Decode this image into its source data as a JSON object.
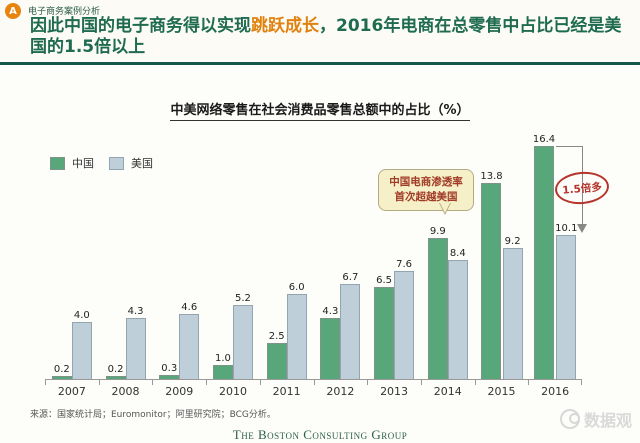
{
  "header": {
    "badge": "A",
    "eyebrow": "电子商务案例分析",
    "title_pre": "因此中国的电子商务得以实现",
    "title_highlight": "跳跃成长",
    "title_post": "，2016年电商在总零售中占比已经是美国的1.5倍以上"
  },
  "chart_data": {
    "type": "bar",
    "title": "中美网络零售在社会消费品零售总额中的占比（%）",
    "categories": [
      "2007",
      "2008",
      "2009",
      "2010",
      "2011",
      "2012",
      "2013",
      "2014",
      "2015",
      "2016"
    ],
    "series": [
      {
        "name": "中国",
        "color": "#57a77a",
        "values": [
          0.2,
          0.2,
          0.3,
          1.0,
          2.5,
          4.3,
          6.5,
          9.9,
          13.8,
          16.4
        ]
      },
      {
        "name": "美国",
        "color": "#bfcfd9",
        "values": [
          4.0,
          4.3,
          4.6,
          5.2,
          6.0,
          6.7,
          7.6,
          8.4,
          9.2,
          10.1
        ]
      }
    ],
    "ylim": [
      0,
      16.6
    ],
    "grid": false,
    "legend_position": "top-left",
    "annotations": {
      "callout_line1": "中国电商渗透率",
      "callout_line2": "首次超越美国",
      "ratio_label": "1.5倍多"
    }
  },
  "footer": {
    "source": "来源：国家统计局；Euromonitor；阿里研究院；BCG分析。",
    "logo": "The Boston Consulting Group",
    "watermark": "数据观"
  }
}
